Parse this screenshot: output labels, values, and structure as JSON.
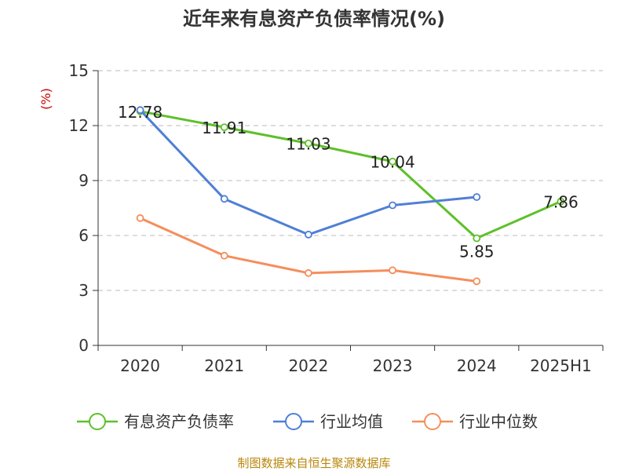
{
  "colors": {
    "series": [
      "#5ec02a",
      "#4f7fd6",
      "#f58e5c"
    ],
    "axis": "#333333",
    "grid": "#bbbbbb",
    "unit": "#cc0000",
    "source": "#b8860b"
  },
  "chart_data": {
    "type": "line",
    "title": "近年来有息资产负债率情况(%)",
    "ylabel": "(%)",
    "xlabel": "",
    "categories": [
      "2020",
      "2021",
      "2022",
      "2023",
      "2024",
      "2025H1"
    ],
    "ylim": [
      0,
      15
    ],
    "yticks": [
      0,
      3,
      6,
      9,
      12,
      15
    ],
    "grid": "horizontal dashed",
    "legend": "bottom",
    "series": [
      {
        "name": "有息资产负债率",
        "values": [
          12.78,
          11.91,
          11.03,
          10.04,
          5.85,
          7.86
        ],
        "labels": [
          "12.78",
          "11.91",
          "11.03",
          "10.04",
          "5.85",
          "7.86"
        ]
      },
      {
        "name": "行业均值",
        "values": [
          12.85,
          8.0,
          6.05,
          7.65,
          8.1,
          null
        ]
      },
      {
        "name": "行业中位数",
        "values": [
          6.95,
          4.9,
          3.95,
          4.1,
          3.5,
          null
        ]
      }
    ]
  },
  "source": "制图数据来自恒生聚源数据库"
}
